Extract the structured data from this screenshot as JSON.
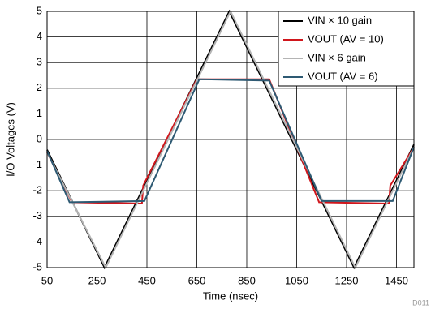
{
  "chart_data": {
    "type": "line",
    "xlabel": "Time (nsec)",
    "ylabel": "I/O Voltages (V)",
    "note": "D011",
    "xlim": [
      50,
      1520
    ],
    "xticks": [
      50,
      250,
      450,
      650,
      850,
      1050,
      1250,
      1450
    ],
    "ylim": [
      -5,
      5
    ],
    "yticks": [
      -5,
      -4,
      -3,
      -2,
      -1,
      0,
      1,
      2,
      3,
      4,
      5
    ],
    "grid": true,
    "legend": "upper right",
    "series": [
      {
        "name": "VIN × 10 gain",
        "color": "#000000",
        "x": [
          50,
          280,
          780,
          1280,
          1520
        ],
        "values": [
          -0.4,
          -5,
          5,
          -5,
          -0.2
        ]
      },
      {
        "name": "VOUT (AV = 10)",
        "color": "#d0161c",
        "x": [
          50,
          150,
          430,
          435,
          650,
          940,
          1140,
          1420,
          1425,
          1520
        ],
        "values": [
          -0.5,
          -2.45,
          -2.5,
          -1.8,
          2.35,
          2.35,
          -2.45,
          -2.5,
          -1.8,
          -0.3
        ]
      },
      {
        "name": "VIN × 6 gain",
        "color": "#b4b4b4",
        "x": [
          50,
          285,
          785,
          1285,
          1520
        ],
        "values": [
          -0.5,
          -5,
          5,
          -5,
          -0.3
        ]
      },
      {
        "name": "VOUT (AV = 6)",
        "color": "#2e5a73",
        "x": [
          50,
          140,
          440,
          660,
          940,
          1150,
          1435,
          1520
        ],
        "values": [
          -0.45,
          -2.45,
          -2.4,
          2.35,
          2.3,
          -2.4,
          -2.4,
          -0.3
        ]
      }
    ]
  }
}
